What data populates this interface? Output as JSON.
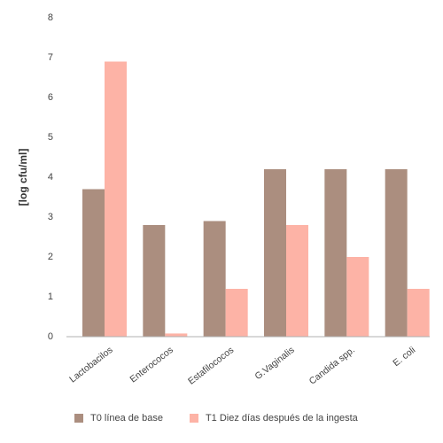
{
  "chart_data": {
    "type": "bar",
    "title": "",
    "xlabel": "",
    "ylabel": "[log cfu/ml]",
    "ylim": [
      0,
      8
    ],
    "yticks": [
      "0",
      "1",
      "2",
      "3",
      "4",
      "5",
      "6",
      "7",
      "8"
    ],
    "categories": [
      "Lactobacilos",
      "Enterococos",
      "Estafilococos",
      "G.Vaginalis",
      "Candida spp.",
      "E. coli"
    ],
    "series": [
      {
        "name": "T0 línea de base",
        "color": "#ab8e7f",
        "values": [
          3.7,
          2.8,
          2.9,
          4.2,
          4.2,
          4.2
        ]
      },
      {
        "name": "T1 Diez días después de la ingesta",
        "color": "#fdb3a6",
        "values": [
          6.9,
          0.08,
          1.2,
          2.8,
          2.0,
          1.2
        ]
      }
    ],
    "grid": false,
    "legend_position": "bottom"
  }
}
